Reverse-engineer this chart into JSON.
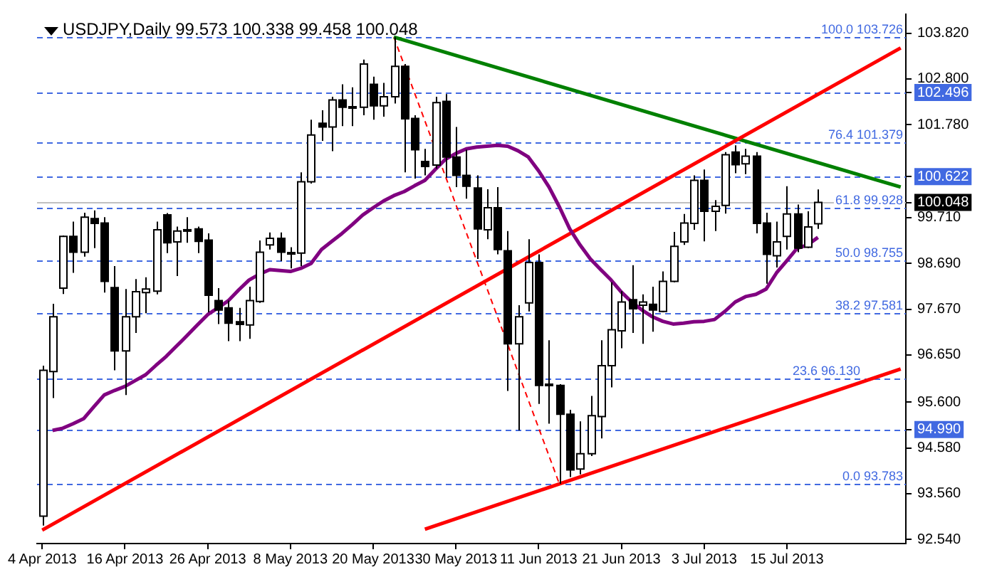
{
  "chart_data": {
    "type": "candlestick",
    "title": "USDJPY,Daily 99.573 100.338 99.458 100.048",
    "categories": [
      "4 Apr 2013",
      null,
      null,
      null,
      null,
      null,
      null,
      null,
      "16 Apr 2013",
      null,
      null,
      null,
      null,
      null,
      null,
      null,
      "26 Apr 2013",
      null,
      null,
      null,
      null,
      null,
      null,
      null,
      "8 May 2013",
      null,
      null,
      null,
      null,
      null,
      null,
      null,
      "20 May 2013",
      null,
      null,
      null,
      null,
      null,
      null,
      null,
      "30 May 2013",
      null,
      null,
      null,
      null,
      null,
      null,
      null,
      "11 Jun 2013",
      null,
      null,
      null,
      null,
      null,
      null,
      null,
      "21 Jun 2013",
      null,
      null,
      null,
      null,
      null,
      null,
      null,
      "3 Jul 2013",
      null,
      null,
      null,
      null,
      null,
      null,
      null,
      "15 Jul 2013",
      null,
      null,
      null,
      null,
      null,
      null,
      null,
      null,
      null,
      null,
      null
    ],
    "ohlc": [
      [
        93.06,
        96.41,
        92.85,
        96.31
      ],
      [
        96.28,
        97.79,
        95.69,
        97.5
      ],
      [
        98.14,
        99.31,
        98.01,
        99.29
      ],
      [
        99.29,
        99.62,
        98.48,
        98.94
      ],
      [
        98.94,
        99.82,
        98.84,
        99.72
      ],
      [
        99.69,
        99.87,
        99.03,
        99.58
      ],
      [
        99.59,
        99.72,
        98.04,
        98.29
      ],
      [
        98.15,
        98.63,
        96.31,
        96.74
      ],
      [
        96.74,
        98.12,
        95.76,
        97.5
      ],
      [
        97.5,
        98.34,
        97.14,
        98.06
      ],
      [
        98.04,
        98.38,
        97.58,
        98.12
      ],
      [
        98.07,
        99.62,
        98.0,
        99.44
      ],
      [
        99.77,
        99.81,
        98.92,
        99.15
      ],
      [
        99.17,
        99.51,
        98.41,
        99.41
      ],
      [
        99.44,
        99.72,
        99.15,
        99.42
      ],
      [
        99.46,
        99.51,
        98.92,
        99.18
      ],
      [
        99.21,
        99.36,
        97.6,
        97.98
      ],
      [
        97.86,
        98.14,
        97.34,
        97.65
      ],
      [
        97.7,
        97.86,
        96.96,
        97.36
      ],
      [
        97.39,
        97.7,
        96.96,
        97.33
      ],
      [
        97.32,
        98.17,
        97.01,
        97.86
      ],
      [
        97.84,
        99.2,
        97.81,
        98.94
      ],
      [
        99.1,
        99.38,
        99.0,
        99.25
      ],
      [
        99.25,
        99.38,
        98.74,
        98.94
      ],
      [
        98.93,
        99.05,
        98.58,
        98.92
      ],
      [
        98.92,
        100.72,
        98.63,
        100.51
      ],
      [
        100.51,
        101.89,
        100.47,
        101.55
      ],
      [
        101.81,
        102.1,
        101.42,
        101.73
      ],
      [
        101.73,
        102.4,
        101.19,
        102.33
      ],
      [
        102.33,
        102.68,
        101.75,
        102.17
      ],
      [
        102.18,
        102.61,
        101.75,
        102.17
      ],
      [
        102.17,
        103.23,
        101.99,
        103.13
      ],
      [
        102.68,
        102.85,
        101.89,
        102.2
      ],
      [
        102.2,
        102.71,
        101.96,
        102.4
      ],
      [
        102.4,
        103.73,
        102.25,
        103.08
      ],
      [
        103.08,
        103.13,
        100.72,
        101.91
      ],
      [
        101.92,
        101.99,
        100.58,
        101.22
      ],
      [
        100.96,
        101.24,
        100.65,
        100.85
      ],
      [
        100.88,
        102.4,
        100.8,
        102.27
      ],
      [
        102.3,
        102.46,
        100.6,
        101.06
      ],
      [
        101.06,
        101.73,
        100.39,
        100.65
      ],
      [
        100.65,
        101.22,
        100.13,
        100.41
      ],
      [
        100.37,
        100.65,
        98.79,
        99.46
      ],
      [
        99.44,
        100.34,
        99.23,
        99.93
      ],
      [
        99.93,
        100.39,
        98.89,
        99.0
      ],
      [
        98.97,
        99.41,
        95.85,
        96.9
      ],
      [
        96.9,
        97.76,
        94.97,
        97.5
      ],
      [
        97.81,
        99.23,
        97.62,
        98.71
      ],
      [
        98.71,
        98.89,
        95.56,
        95.97
      ],
      [
        96.0,
        96.98,
        95.12,
        95.99
      ],
      [
        95.97,
        96.0,
        93.78,
        95.33
      ],
      [
        95.33,
        95.43,
        93.93,
        94.09
      ],
      [
        94.11,
        95.17,
        93.99,
        94.45
      ],
      [
        94.45,
        95.74,
        94.4,
        95.3
      ],
      [
        95.28,
        96.98,
        94.79,
        96.41
      ],
      [
        96.41,
        98.27,
        95.93,
        97.21
      ],
      [
        97.19,
        98.07,
        96.8,
        97.83
      ],
      [
        97.88,
        98.65,
        97.14,
        97.68
      ],
      [
        97.76,
        98.0,
        96.9,
        97.83
      ],
      [
        97.78,
        98.17,
        97.17,
        97.65
      ],
      [
        97.62,
        98.51,
        97.6,
        98.29
      ],
      [
        98.29,
        99.39,
        98.27,
        99.07
      ],
      [
        99.17,
        99.79,
        99.1,
        99.59
      ],
      [
        99.58,
        100.65,
        99.44,
        100.54
      ],
      [
        100.54,
        100.78,
        99.18,
        99.85
      ],
      [
        99.85,
        100.1,
        99.41,
        99.96
      ],
      [
        99.98,
        101.17,
        99.8,
        101.11
      ],
      [
        101.17,
        101.32,
        100.7,
        100.89
      ],
      [
        100.91,
        101.24,
        100.68,
        101.08
      ],
      [
        101.08,
        101.17,
        99.36,
        99.58
      ],
      [
        99.59,
        99.82,
        98.24,
        98.89
      ],
      [
        98.86,
        99.62,
        98.6,
        99.17
      ],
      [
        99.29,
        100.41,
        99.0,
        99.79
      ],
      [
        99.79,
        100.0,
        98.94,
        99.03
      ],
      [
        99.05,
        99.85,
        99.03,
        99.5
      ],
      [
        99.573,
        100.338,
        99.458,
        100.048
      ],
      null,
      null,
      null,
      null,
      null,
      null,
      null,
      null
    ],
    "series": [
      {
        "type": "line",
        "color": "#800080",
        "values": [
          null,
          94.97,
          95.02,
          95.12,
          95.23,
          95.5,
          95.76,
          95.86,
          95.95,
          96.08,
          96.21,
          96.42,
          96.62,
          96.85,
          97.08,
          97.32,
          97.55,
          97.7,
          97.86,
          98.1,
          98.32,
          98.45,
          98.55,
          98.53,
          98.51,
          98.58,
          98.69,
          99.0,
          99.18,
          99.36,
          99.56,
          99.77,
          99.93,
          100.08,
          100.2,
          100.29,
          100.42,
          100.54,
          100.78,
          101.01,
          101.14,
          101.24,
          101.28,
          101.3,
          101.32,
          101.3,
          101.2,
          101.06,
          100.75,
          100.39,
          99.95,
          99.46,
          99.1,
          98.79,
          98.55,
          98.32,
          98.05,
          97.83,
          97.65,
          97.5,
          97.4,
          97.34,
          97.36,
          97.39,
          97.4,
          97.44,
          97.62,
          97.83,
          97.95,
          98.0,
          98.12,
          98.48,
          98.75,
          99.03,
          99.1,
          99.27,
          null,
          null,
          null,
          null,
          null,
          null,
          null,
          null
        ]
      },
      {
        "type": "line",
        "color": "#ff0000",
        "values": [
          92.75,
          null,
          null,
          null,
          null,
          null,
          null,
          null,
          null,
          null,
          null,
          null,
          null,
          null,
          null,
          null,
          null,
          null,
          null,
          null,
          null,
          null,
          null,
          null,
          null,
          null,
          null,
          null,
          null,
          null,
          null,
          null,
          null,
          null,
          null,
          null,
          null,
          null,
          null,
          null,
          null,
          null,
          null,
          null,
          null,
          null,
          null,
          null,
          null,
          null,
          null,
          null,
          null,
          null,
          null,
          null,
          null,
          null,
          null,
          null,
          null,
          null,
          null,
          null,
          null,
          null,
          null,
          null,
          null,
          null,
          null,
          null,
          null,
          null,
          null,
          null,
          null,
          null,
          null,
          null,
          null,
          null,
          null,
          103.49
        ]
      },
      {
        "type": "line",
        "color": "#ff0000",
        "values": [
          null,
          null,
          null,
          null,
          null,
          null,
          null,
          null,
          null,
          null,
          null,
          null,
          null,
          null,
          null,
          null,
          null,
          null,
          null,
          null,
          null,
          null,
          null,
          null,
          null,
          null,
          null,
          null,
          null,
          null,
          null,
          null,
          null,
          null,
          null,
          null,
          null,
          92.77,
          null,
          null,
          null,
          null,
          null,
          null,
          null,
          null,
          null,
          null,
          null,
          null,
          null,
          null,
          null,
          null,
          null,
          null,
          null,
          null,
          null,
          null,
          null,
          null,
          null,
          null,
          null,
          null,
          null,
          null,
          null,
          null,
          null,
          null,
          null,
          null,
          null,
          null,
          null,
          null,
          null,
          null,
          null,
          null,
          null,
          96.34
        ]
      },
      {
        "type": "line",
        "color": "#008000",
        "values": [
          null,
          null,
          null,
          null,
          null,
          null,
          null,
          null,
          null,
          null,
          null,
          null,
          null,
          null,
          null,
          null,
          null,
          null,
          null,
          null,
          null,
          null,
          null,
          null,
          null,
          null,
          null,
          null,
          null,
          null,
          null,
          null,
          null,
          null,
          103.73,
          null,
          null,
          null,
          null,
          null,
          null,
          null,
          null,
          null,
          null,
          null,
          null,
          null,
          null,
          null,
          null,
          null,
          null,
          null,
          null,
          null,
          null,
          null,
          null,
          null,
          null,
          null,
          null,
          null,
          null,
          null,
          null,
          null,
          null,
          null,
          null,
          null,
          null,
          null,
          null,
          null,
          null,
          null,
          null,
          null,
          null,
          null,
          null,
          100.39
        ]
      },
      {
        "type": "line",
        "color": "#ff0000",
        "line_style": "dashed",
        "values": [
          null,
          null,
          null,
          null,
          null,
          null,
          null,
          null,
          null,
          null,
          null,
          null,
          null,
          null,
          null,
          null,
          null,
          null,
          null,
          null,
          null,
          null,
          null,
          null,
          null,
          null,
          null,
          null,
          null,
          null,
          null,
          null,
          null,
          null,
          103.73,
          null,
          null,
          null,
          null,
          null,
          null,
          null,
          null,
          null,
          null,
          null,
          null,
          null,
          null,
          null,
          93.78,
          null,
          null,
          null,
          null,
          null,
          null,
          null,
          null,
          null,
          null,
          null,
          null,
          null,
          null,
          null,
          null,
          null,
          null,
          null,
          null,
          null,
          null,
          null,
          null,
          null,
          null,
          null,
          null,
          null,
          null,
          null,
          null,
          null
        ]
      }
    ],
    "ylim": [
      92.45,
      104.24
    ],
    "yticks": [
      {
        "value": 103.82,
        "label": "103.820"
      },
      {
        "value": 102.8,
        "label": "102.800"
      },
      {
        "value": 102.496,
        "label": "102.496"
      },
      {
        "value": 101.78,
        "label": "101.780"
      },
      {
        "value": 100.622,
        "label": "100.622"
      },
      {
        "value": 100.048,
        "label": "100.048"
      },
      {
        "value": 99.71,
        "label": "99.710"
      },
      {
        "value": 98.69,
        "label": "98.690"
      },
      {
        "value": 97.67,
        "label": "97.670"
      },
      {
        "value": 96.65,
        "label": "96.650"
      },
      {
        "value": 95.6,
        "label": "95.600"
      },
      {
        "value": 94.99,
        "label": "94.990"
      },
      {
        "value": 94.58,
        "label": "94.580"
      },
      {
        "value": 93.56,
        "label": "93.560"
      },
      {
        "value": 92.54,
        "label": "92.540"
      }
    ],
    "ref_lines": [
      {
        "axis": "y",
        "value": 103.726,
        "label": "100.0 103.726",
        "color": "#4169e1",
        "line_style": "dashed"
      },
      {
        "axis": "y",
        "value": 101.379,
        "label": "76.4 101.379",
        "color": "#4169e1",
        "line_style": "dashed"
      },
      {
        "axis": "y",
        "value": 99.928,
        "label": "61.8 99.928",
        "color": "#4169e1",
        "line_style": "dashed"
      },
      {
        "axis": "y",
        "value": 98.755,
        "label": "50.0 98.755",
        "color": "#4169e1",
        "line_style": "dashed"
      },
      {
        "axis": "y",
        "value": 97.581,
        "label": "38.2 97.581",
        "color": "#4169e1",
        "line_style": "dashed"
      },
      {
        "axis": "y",
        "value": 96.13,
        "label": "23.6 96.130",
        "color": "#4169e1",
        "line_style": "dashed"
      },
      {
        "axis": "y",
        "value": 93.783,
        "label": "0.0 93.783",
        "color": "#4169e1",
        "line_style": "dashed"
      },
      {
        "axis": "y",
        "value": 102.496,
        "color": "#4169e1",
        "line_style": "dashed"
      },
      {
        "axis": "y",
        "value": 100.622,
        "color": "#4169e1",
        "line_style": "dashed"
      },
      {
        "axis": "y",
        "value": 94.99,
        "color": "#4169e1",
        "line_style": "dashed"
      },
      {
        "axis": "y",
        "value": 100.048,
        "color": "#c0c0c0",
        "line_style": "solid"
      }
    ],
    "legend": false
  }
}
